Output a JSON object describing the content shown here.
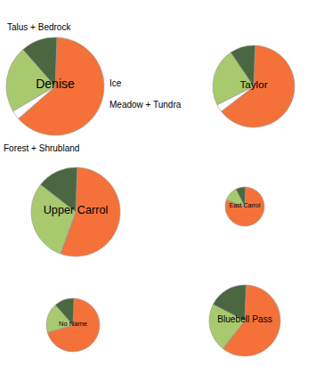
{
  "chart_data": [
    {
      "type": "pie",
      "title": "Denise",
      "categories": [
        "Talus + Bedrock",
        "Ice",
        "Meadow + Tundra",
        "Forest + Shrubland"
      ],
      "values": [
        63,
        3,
        22,
        12
      ],
      "colors": [
        "#F4723A",
        "#FFFFFF",
        "#A8C96E",
        "#4A6741"
      ]
    },
    {
      "type": "pie",
      "title": "Taylor",
      "values": [
        64,
        3,
        23,
        10
      ],
      "colors": [
        "#F4723A",
        "#FFFFFF",
        "#A8C96E",
        "#4A6741"
      ]
    },
    {
      "type": "pie",
      "title": "Upper Carrol",
      "values": [
        55,
        0,
        30,
        15
      ],
      "colors": [
        "#F4723A",
        "#FFFFFF",
        "#A8C96E",
        "#4A6741"
      ]
    },
    {
      "type": "pie",
      "title": "East Carrol",
      "values": [
        80,
        0,
        12,
        8
      ],
      "colors": [
        "#F4723A",
        "#FFFFFF",
        "#A8C96E",
        "#4A6741"
      ]
    },
    {
      "type": "pie",
      "title": "No Name",
      "values": [
        70,
        0,
        18,
        12
      ],
      "colors": [
        "#F4723A",
        "#FFFFFF",
        "#A8C96E",
        "#4A6741"
      ]
    },
    {
      "type": "pie",
      "title": "Bluebell Pass",
      "values": [
        60,
        0,
        22,
        18
      ],
      "colors": [
        "#F4723A",
        "#FFFFFF",
        "#A8C96E",
        "#4A6741"
      ]
    }
  ]
}
